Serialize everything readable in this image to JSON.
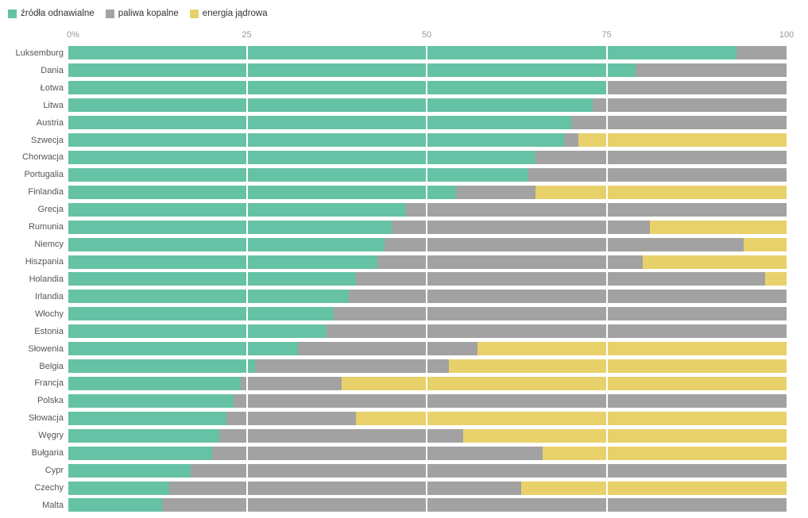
{
  "legend": [
    {
      "label": "źródła odnawialne",
      "color": "#66c2a5"
    },
    {
      "label": "paliwa kopalne",
      "color": "#a2a2a2"
    },
    {
      "label": "energia jądrowa",
      "color": "#e8d16a"
    }
  ],
  "axis": {
    "ticks": [
      {
        "label": "0%",
        "pos": 0
      },
      {
        "label": "25",
        "pos": 25
      },
      {
        "label": "50",
        "pos": 50
      },
      {
        "label": "75",
        "pos": 75
      },
      {
        "label": "100",
        "pos": 100
      }
    ]
  },
  "chart_data": {
    "type": "bar",
    "orientation": "horizontal",
    "stacked": true,
    "title": "",
    "xlabel": "",
    "ylabel": "",
    "xlim": [
      0,
      100
    ],
    "x_ticks": [
      "0%",
      "25",
      "50",
      "75",
      "100"
    ],
    "grid": true,
    "legend_position": "top-left",
    "categories": [
      "Luksemburg",
      "Dania",
      "Łotwa",
      "Litwa",
      "Austria",
      "Szwecja",
      "Chorwacja",
      "Portugalia",
      "Finlandia",
      "Grecja",
      "Rumunia",
      "Niemcy",
      "Hiszpania",
      "Holandia",
      "Irlandia",
      "Włochy",
      "Estonia",
      "Słowenia",
      "Belgia",
      "Francja",
      "Polska",
      "Słowacja",
      "Węgry",
      "Bułgaria",
      "Cypr",
      "Czechy",
      "Malta"
    ],
    "series": [
      {
        "name": "źródła odnawialne",
        "key": "renewable",
        "color": "#66c2a5",
        "values": [
          93,
          79,
          75,
          73,
          70,
          69,
          65,
          64,
          54,
          47,
          45,
          44,
          43,
          40,
          39,
          37,
          36,
          32,
          26,
          24,
          23,
          22,
          21,
          20,
          17,
          14,
          13
        ]
      },
      {
        "name": "paliwa kopalne",
        "key": "fossil",
        "color": "#a2a2a2",
        "values": [
          7,
          21,
          25,
          27,
          30,
          2,
          35,
          36,
          11,
          53,
          36,
          50,
          37,
          57,
          61,
          63,
          64,
          25,
          27,
          14,
          77,
          18,
          34,
          46,
          83,
          49,
          87
        ]
      },
      {
        "name": "energia jądrowa",
        "key": "nuclear",
        "color": "#e8d16a",
        "values": [
          0,
          0,
          0,
          0,
          0,
          29,
          0,
          0,
          35,
          0,
          19,
          6,
          20,
          3,
          0,
          0,
          0,
          43,
          47,
          62,
          0,
          60,
          45,
          34,
          0,
          37,
          0
        ]
      }
    ]
  }
}
